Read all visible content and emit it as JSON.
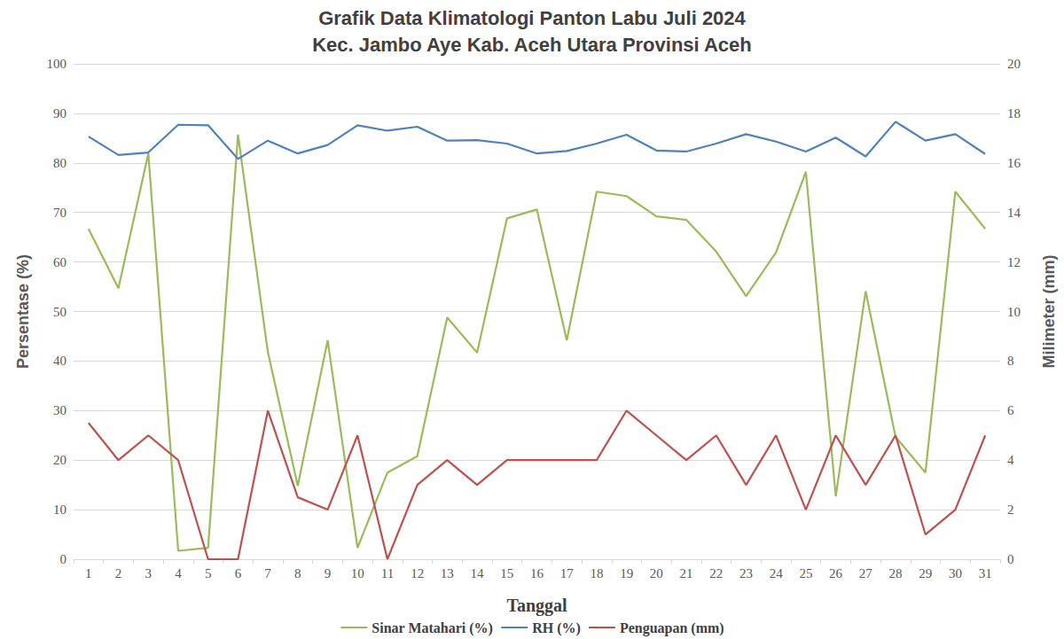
{
  "chart_data": {
    "type": "line",
    "title": "Grafik Data Klimatologi Panton Labu Juli 2024",
    "subtitle": "Kec. Jambo Aye Kab. Aceh Utara Provinsi Aceh",
    "x_label": "Tanggal",
    "y_label": "Persentase (%)",
    "y2_label": "Milimeter (mm)",
    "categories": [
      1,
      2,
      3,
      4,
      5,
      6,
      7,
      8,
      9,
      10,
      11,
      12,
      13,
      14,
      15,
      16,
      17,
      18,
      19,
      20,
      21,
      22,
      23,
      24,
      25,
      26,
      27,
      28,
      29,
      30,
      31
    ],
    "series": [
      {
        "name": "Sinar Matahari (%)",
        "color": "#9bbb59",
        "marker": "none",
        "line_style": "solid",
        "values": [
          66.7,
          54.7,
          81.9,
          1.7,
          2.3,
          85.7,
          41.8,
          14.8,
          44.2,
          2.3,
          17.5,
          20.8,
          48.8,
          41.7,
          68.8,
          70.6,
          44.2,
          74.2,
          73.3,
          69.2,
          68.5,
          62.1,
          53.1,
          61.9,
          78.2,
          12.7,
          54.1,
          24.7,
          17.5,
          74.2,
          66.7
        ]
      },
      {
        "name": "RH (%)",
        "color": "#4f81bd",
        "marker": "none",
        "line_style": "solid",
        "values": [
          85.3,
          81.6,
          82.1,
          87.7,
          87.6,
          80.8,
          84.5,
          81.9,
          83.6,
          87.6,
          86.5,
          87.3,
          84.5,
          84.6,
          83.9,
          81.9,
          82.4,
          83.9,
          85.7,
          82.5,
          82.3,
          83.9,
          85.8,
          84.3,
          82.3,
          85.1,
          81.3,
          88.3,
          84.5,
          85.8,
          81.8
        ]
      },
      {
        "name": "Penguapan (mm)",
        "color": "#c0504d",
        "marker": "none",
        "line_style": "solid",
        "axis": "y2",
        "values": [
          5.5,
          4,
          5,
          4,
          0,
          0,
          6,
          2.5,
          2,
          5,
          0,
          3,
          4,
          3,
          4,
          4,
          4,
          4,
          6,
          5,
          4,
          5,
          3,
          5,
          2,
          5,
          3,
          5,
          1,
          2,
          5
        ]
      }
    ],
    "ylim": [
      0,
      100
    ],
    "yticks": [
      0,
      10,
      20,
      30,
      40,
      50,
      60,
      70,
      80,
      90,
      100
    ],
    "y2lim": [
      0,
      20
    ],
    "y2ticks": [
      0,
      2,
      4,
      6,
      8,
      10,
      12,
      14,
      16,
      18,
      20
    ],
    "grid": true,
    "legend": "bottom"
  }
}
